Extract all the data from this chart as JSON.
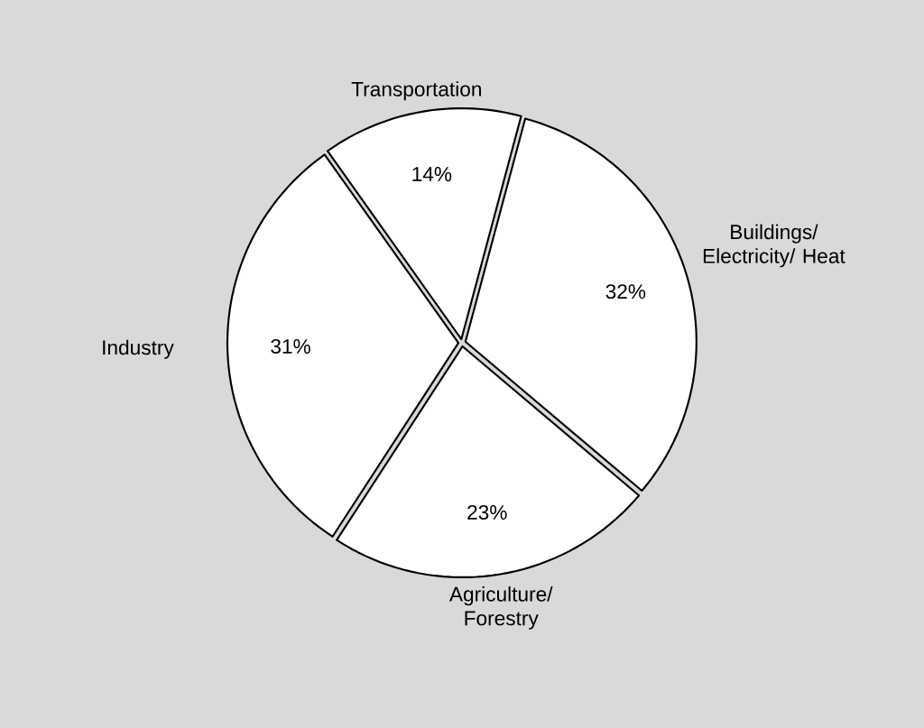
{
  "chart_data": {
    "type": "pie",
    "categories": [
      "Transportation",
      "Buildings/ Electricity/ Heat",
      "Agriculture/ Forestry",
      "Industry"
    ],
    "values": [
      14,
      32,
      23,
      31
    ],
    "colors": [
      "#ffffff",
      "#ffffff",
      "#ffffff",
      "#ffffff"
    ],
    "value_labels": [
      "14%",
      "32%",
      "23%",
      "31%"
    ]
  }
}
